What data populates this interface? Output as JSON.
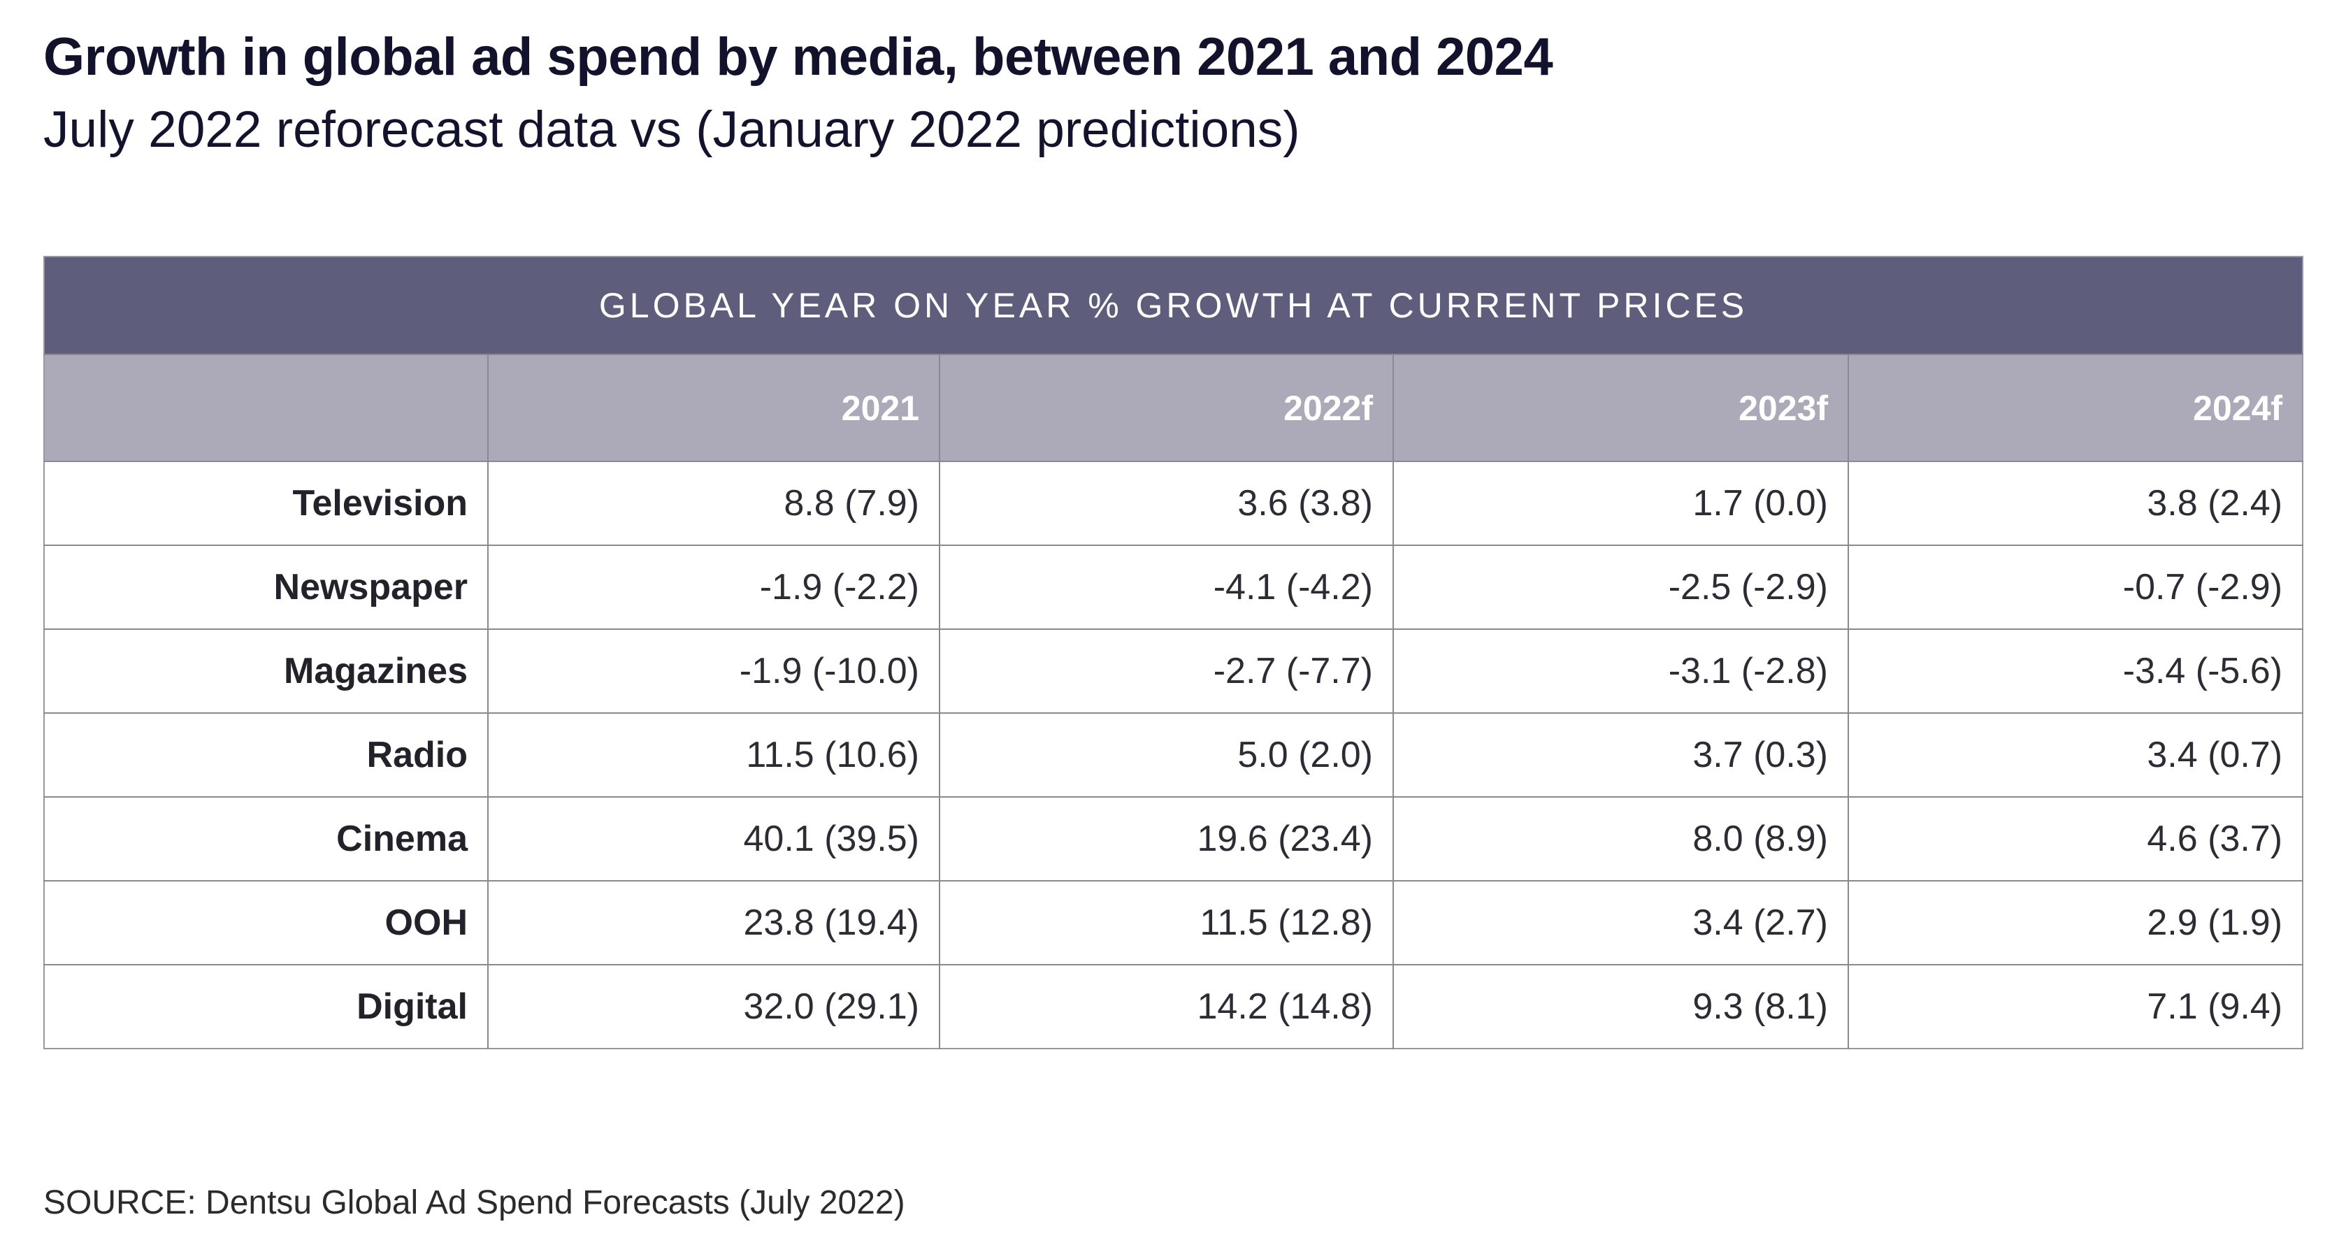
{
  "header": {
    "title": "Growth in global ad spend by media, between 2021 and 2024",
    "subtitle": "July 2022 reforecast data vs (January 2022 predictions)"
  },
  "footer": {
    "source": "SOURCE: Dentsu Global Ad Spend Forecasts (July 2022)"
  },
  "colors": {
    "title_text": "#12122d",
    "band_dark_background": "#5e5d7b",
    "band_light_background": "#aca9b9",
    "band_text": "#ffffff",
    "cell_text": "#2d2b33",
    "grid_border": "#8a8892"
  },
  "chart_data": {
    "type": "table",
    "title": "GLOBAL YEAR ON YEAR % GROWTH AT CURRENT PRICES",
    "columns": [
      "",
      "2021",
      "2022f",
      "2023f",
      "2024f"
    ],
    "value_format": "July 2022 reforecast (January 2022 prediction)",
    "rows": [
      {
        "label": "Television",
        "cells": [
          "8.8 (7.9)",
          "3.6 (3.8)",
          "1.7 (0.0)",
          "3.8 (2.4)"
        ],
        "reforecast": [
          8.8,
          3.6,
          1.7,
          3.8
        ],
        "prediction": [
          7.9,
          3.8,
          0.0,
          2.4
        ]
      },
      {
        "label": "Newspaper",
        "cells": [
          "-1.9 (-2.2)",
          "-4.1 (-4.2)",
          "-2.5 (-2.9)",
          "-0.7 (-2.9)"
        ],
        "reforecast": [
          -1.9,
          -4.1,
          -2.5,
          -0.7
        ],
        "prediction": [
          -2.2,
          -4.2,
          -2.9,
          -2.9
        ]
      },
      {
        "label": "Magazines",
        "cells": [
          "-1.9 (-10.0)",
          "-2.7 (-7.7)",
          "-3.1 (-2.8)",
          "-3.4 (-5.6)"
        ],
        "reforecast": [
          -1.9,
          -2.7,
          -3.1,
          -3.4
        ],
        "prediction": [
          -10.0,
          -7.7,
          -2.8,
          -5.6
        ]
      },
      {
        "label": "Radio",
        "cells": [
          "11.5 (10.6)",
          "5.0 (2.0)",
          "3.7 (0.3)",
          "3.4 (0.7)"
        ],
        "reforecast": [
          11.5,
          5.0,
          3.7,
          3.4
        ],
        "prediction": [
          10.6,
          2.0,
          0.3,
          0.7
        ]
      },
      {
        "label": "Cinema",
        "cells": [
          "40.1 (39.5)",
          "19.6 (23.4)",
          "8.0 (8.9)",
          "4.6 (3.7)"
        ],
        "reforecast": [
          40.1,
          19.6,
          8.0,
          4.6
        ],
        "prediction": [
          39.5,
          23.4,
          8.9,
          3.7
        ]
      },
      {
        "label": "OOH",
        "cells": [
          "23.8 (19.4)",
          "11.5 (12.8)",
          "3.4 (2.7)",
          "2.9 (1.9)"
        ],
        "reforecast": [
          23.8,
          11.5,
          3.4,
          2.9
        ],
        "prediction": [
          19.4,
          12.8,
          2.7,
          1.9
        ]
      },
      {
        "label": "Digital",
        "cells": [
          "32.0 (29.1)",
          "14.2 (14.8)",
          "9.3 (8.1)",
          "7.1 (9.4)"
        ],
        "reforecast": [
          32.0,
          14.2,
          9.3,
          7.1
        ],
        "prediction": [
          29.1,
          14.8,
          8.1,
          9.4
        ]
      }
    ]
  }
}
